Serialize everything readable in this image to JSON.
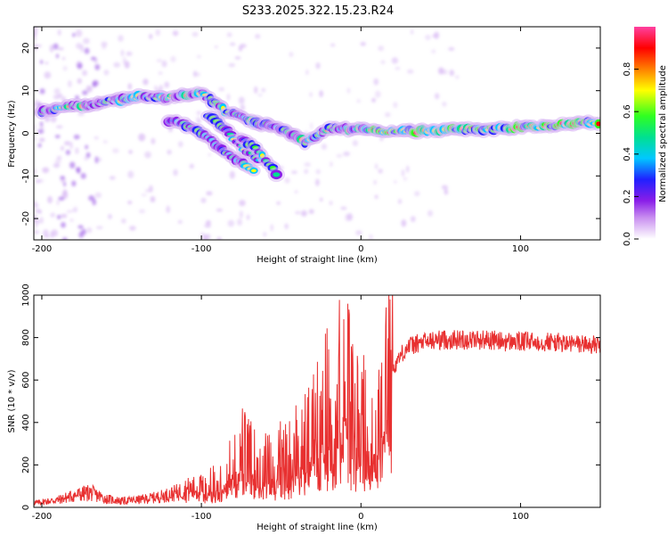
{
  "title": "S233.2025.322.15.23.R24",
  "chart_data": [
    {
      "type": "heatmap",
      "title": "S233.2025.322.15.23.R24",
      "xlabel": "Height of straight line (km)",
      "ylabel": "Frequency (Hz)",
      "xlim": [
        -205,
        150
      ],
      "ylim": [
        -25,
        25
      ],
      "xticks": [
        -200,
        -100,
        0,
        100
      ],
      "yticks": [
        -20,
        -10,
        0,
        10,
        20
      ],
      "colorbar": {
        "label": "Normalized spectral amplitude",
        "range": [
          0,
          1
        ],
        "ticks": [
          "0.0",
          "0.2",
          "0.4",
          "0.6",
          "0.8"
        ],
        "colors": [
          "#ffffff",
          "#c98ff0",
          "#8a1ee8",
          "#2020ff",
          "#00c8ff",
          "#00e090",
          "#30ff20",
          "#ffff00",
          "#ff8000",
          "#ff0000",
          "#ff40a0"
        ]
      },
      "ridges": [
        {
          "name": "main",
          "points": [
            [
              -200,
              5
            ],
            [
              -190,
              6
            ],
            [
              -180,
              6.5
            ],
            [
              -170,
              6.5
            ],
            [
              -160,
              7.5
            ],
            [
              -150,
              8
            ],
            [
              -140,
              8.5
            ],
            [
              -130,
              8.5
            ],
            [
              -120,
              8.5
            ],
            [
              -110,
              9
            ],
            [
              -100,
              9.5
            ],
            [
              -95,
              8
            ],
            [
              -90,
              7
            ],
            [
              -85,
              5
            ],
            [
              -80,
              4.5
            ],
            [
              -75,
              4
            ],
            [
              -70,
              3
            ],
            [
              -65,
              2.5
            ],
            [
              -60,
              2
            ],
            [
              -55,
              1.5
            ],
            [
              -50,
              1
            ],
            [
              -45,
              0
            ],
            [
              -40,
              -1
            ],
            [
              -35,
              -2
            ],
            [
              -30,
              -1
            ],
            [
              -25,
              0
            ],
            [
              -20,
              1
            ],
            [
              -15,
              1
            ],
            [
              -10,
              1
            ],
            [
              -5,
              1
            ],
            [
              0,
              1
            ],
            [
              10,
              0.5
            ],
            [
              20,
              0.5
            ],
            [
              30,
              0.5
            ],
            [
              40,
              0.5
            ],
            [
              50,
              0.8
            ],
            [
              60,
              0.8
            ],
            [
              70,
              1
            ],
            [
              80,
              1
            ],
            [
              90,
              1
            ],
            [
              100,
              1.5
            ],
            [
              110,
              1.5
            ],
            [
              120,
              2
            ],
            [
              130,
              2
            ],
            [
              140,
              2.5
            ],
            [
              150,
              2.5
            ]
          ]
        },
        {
          "name": "branch1",
          "points": [
            [
              -120,
              3
            ],
            [
              -110,
              2
            ],
            [
              -100,
              0
            ],
            [
              -90,
              -3
            ],
            [
              -80,
              -6
            ],
            [
              -70,
              -8
            ],
            [
              -65,
              -9
            ]
          ]
        },
        {
          "name": "branch2",
          "points": [
            [
              -95,
              4
            ],
            [
              -85,
              1
            ],
            [
              -78,
              -2
            ],
            [
              -70,
              -4.5
            ],
            [
              -62,
              -6.5
            ]
          ]
        },
        {
          "name": "branch3",
          "points": [
            [
              -75,
              -1
            ],
            [
              -65,
              -4
            ],
            [
              -58,
              -7
            ],
            [
              -52,
              -10
            ]
          ]
        }
      ]
    },
    {
      "type": "line",
      "xlabel": "Height of straight line (km)",
      "ylabel": "SNR (10 * v/v)",
      "xlim": [
        -205,
        150
      ],
      "ylim": [
        0,
        1000
      ],
      "xticks": [
        -200,
        -100,
        0,
        100
      ],
      "yticks": [
        0,
        200,
        400,
        600,
        800,
        1000
      ],
      "series": [
        {
          "name": "SNR",
          "color": "#e83030",
          "x": [
            -205,
            -200,
            -190,
            -180,
            -170,
            -160,
            -150,
            -140,
            -130,
            -120,
            -110,
            -100,
            -90,
            -80,
            -75,
            -70,
            -65,
            -60,
            -55,
            -50,
            -45,
            -40,
            -35,
            -30,
            -25,
            -20,
            -15,
            -12,
            -10,
            -8,
            -5,
            0,
            5,
            7,
            10,
            15,
            20,
            25,
            30,
            40,
            50,
            60,
            70,
            80,
            90,
            100,
            110,
            120,
            130,
            140,
            150
          ],
          "values": [
            20,
            25,
            35,
            55,
            70,
            40,
            30,
            35,
            45,
            60,
            80,
            90,
            130,
            230,
            280,
            240,
            220,
            210,
            200,
            240,
            250,
            300,
            320,
            380,
            450,
            500,
            520,
            600,
            850,
            560,
            450,
            430,
            420,
            300,
            480,
            560,
            650,
            720,
            760,
            780,
            790,
            790,
            790,
            790,
            780,
            780,
            780,
            780,
            770,
            770,
            760
          ]
        }
      ]
    }
  ]
}
